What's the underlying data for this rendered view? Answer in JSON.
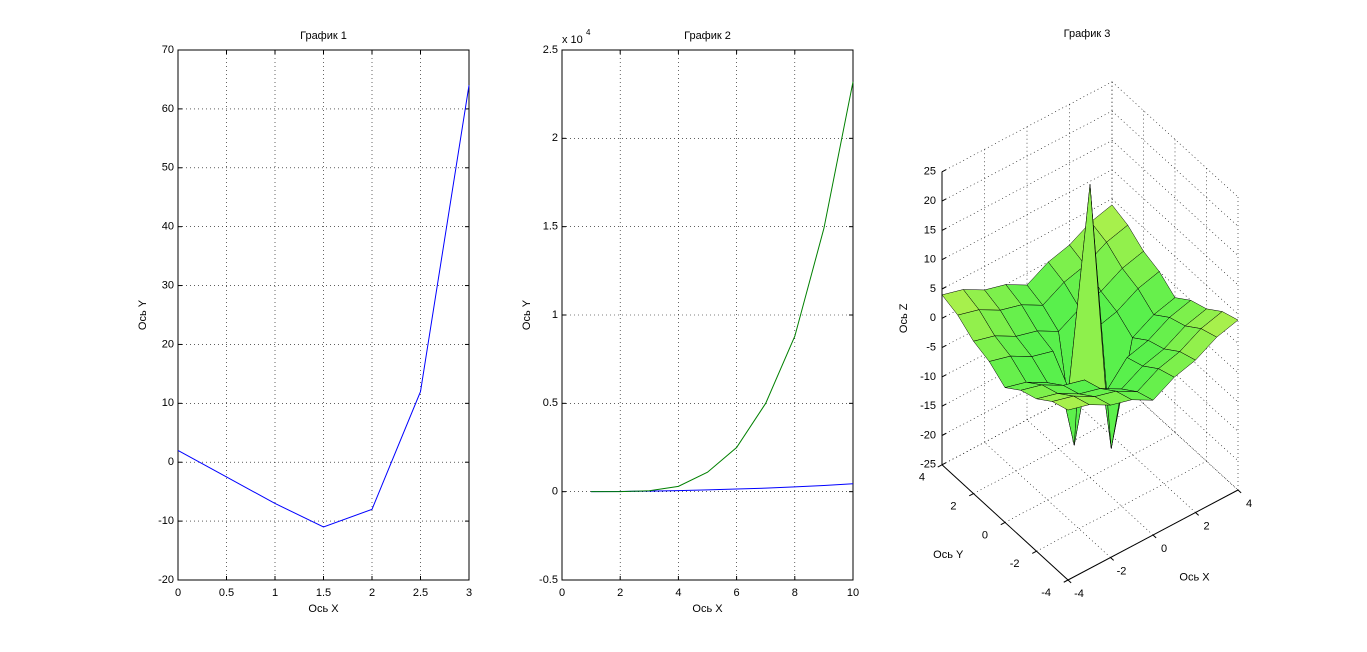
{
  "chart_data": [
    {
      "type": "line",
      "title": "График 1",
      "xlabel": "Ось X",
      "ylabel": "Ось Y",
      "x": [
        0,
        0.5,
        1,
        1.5,
        2,
        2.5,
        3
      ],
      "series": [
        {
          "color": "#0000ff",
          "values": [
            2,
            -2.5,
            -7,
            -11,
            -8,
            12,
            64
          ]
        }
      ],
      "xlim": [
        0,
        3
      ],
      "xticks": [
        0,
        0.5,
        1,
        1.5,
        2,
        2.5,
        3
      ],
      "ylim": [
        -20,
        70
      ],
      "yticks": [
        -20,
        -10,
        0,
        10,
        20,
        30,
        40,
        50,
        60,
        70
      ],
      "grid": true
    },
    {
      "type": "line",
      "title": "График 2",
      "xlabel": "Ось X",
      "ylabel": "Ось Y",
      "multiplier": {
        "base": "x 10",
        "exponent": "4"
      },
      "x": [
        1,
        2,
        3,
        4,
        5,
        6,
        7,
        8,
        9,
        10
      ],
      "series": [
        {
          "color": "#0000ff",
          "values": [
            0,
            0.001,
            0.003,
            0.006,
            0.01,
            0.015,
            0.02,
            0.027,
            0.035,
            0.045
          ]
        },
        {
          "color": "#008000",
          "values": [
            0,
            0,
            0.005,
            0.03,
            0.11,
            0.25,
            0.5,
            0.88,
            1.49,
            2.32
          ]
        }
      ],
      "xlim": [
        0,
        10
      ],
      "xticks": [
        0,
        2,
        4,
        6,
        8,
        10
      ],
      "ylim": [
        -0.5,
        2.5
      ],
      "yticks": [
        -0.5,
        0,
        0.5,
        1,
        1.5,
        2,
        2.5
      ],
      "grid": true
    },
    {
      "type": "surface",
      "title": "График 3",
      "xlabel": "Ось X",
      "ylabel": "Ось Y",
      "zlabel": "Ось Z",
      "x": [
        -4,
        -3,
        -2,
        -1,
        0,
        1,
        2,
        3,
        4
      ],
      "y": [
        -4,
        -3,
        -2,
        -1,
        0,
        1,
        2,
        3,
        4
      ],
      "z": [
        [
          4,
          3,
          1,
          0,
          -2,
          0,
          1,
          3,
          4
        ],
        [
          3,
          2,
          0,
          -1,
          -3,
          -1,
          0,
          2,
          3
        ],
        [
          1,
          0,
          -2,
          -3,
          -5,
          -3,
          -2,
          0,
          1
        ],
        [
          0,
          -1,
          -3,
          -4,
          -8,
          -4,
          -3,
          -1,
          0
        ],
        [
          -2,
          -3,
          -5,
          -8,
          25,
          -22,
          -5,
          -3,
          -2
        ],
        [
          0,
          -1,
          -3,
          -4,
          -22,
          -4,
          -3,
          -1,
          0
        ],
        [
          1,
          0,
          -2,
          -3,
          -5,
          -3,
          -2,
          0,
          1
        ],
        [
          3,
          2,
          0,
          -1,
          -3,
          -1,
          0,
          2,
          3
        ],
        [
          4,
          3,
          1,
          0,
          -2,
          0,
          1,
          3,
          4
        ]
      ],
      "xlim": [
        -4,
        4
      ],
      "xticks": [
        -4,
        -2,
        0,
        2,
        4
      ],
      "ylim": [
        -4,
        4
      ],
      "yticks": [
        -4,
        -2,
        0,
        2,
        4
      ],
      "zlim": [
        -25,
        25
      ],
      "zticks": [
        -25,
        -20,
        -15,
        -10,
        -5,
        0,
        5,
        10,
        15,
        20,
        25
      ],
      "grid": true
    }
  ]
}
